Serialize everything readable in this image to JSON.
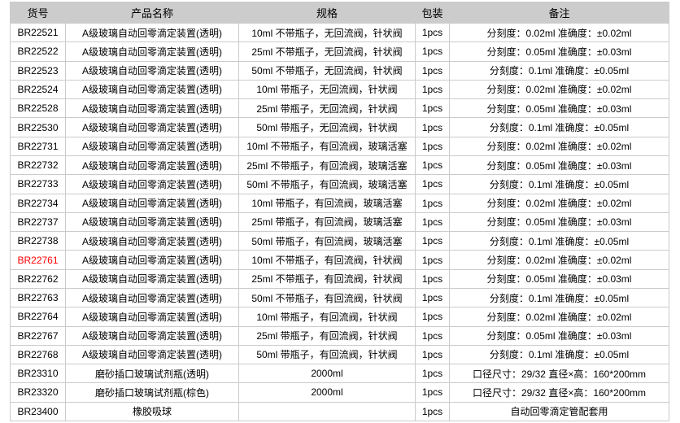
{
  "colors": {
    "header_bg": "#cccccc",
    "border": "#cbcbcb",
    "text": "#000000",
    "highlight_sku": "#ff0000"
  },
  "table": {
    "columns": [
      {
        "key": "sku",
        "label": "货号"
      },
      {
        "key": "name",
        "label": "产品名称"
      },
      {
        "key": "spec",
        "label": "规格"
      },
      {
        "key": "pack",
        "label": "包装"
      },
      {
        "key": "remark",
        "label": "备注"
      }
    ],
    "rows": [
      {
        "sku": "BR22521",
        "name": "A级玻璃自动回零滴定装置(透明)",
        "spec": "10ml 不带瓶子，无回流阀，针状阀",
        "pack": "1pcs",
        "remark": "分刻度：0.02ml 准确度：±0.02ml",
        "highlight": false
      },
      {
        "sku": "BR22522",
        "name": "A级玻璃自动回零滴定装置(透明)",
        "spec": "25ml 不带瓶子，无回流阀，针状阀",
        "pack": "1pcs",
        "remark": "分刻度：0.05ml 准确度：±0.03ml",
        "highlight": false
      },
      {
        "sku": "BR22523",
        "name": "A级玻璃自动回零滴定装置(透明)",
        "spec": "50ml 不带瓶子，无回流阀，针状阀",
        "pack": "1pcs",
        "remark": "分刻度：0.1ml 准确度：±0.05ml",
        "highlight": false
      },
      {
        "sku": "BR22524",
        "name": "A级玻璃自动回零滴定装置(透明)",
        "spec": "10ml 带瓶子，无回流阀，针状阀",
        "pack": "1pcs",
        "remark": "分刻度：0.02ml 准确度：±0.02ml",
        "highlight": false
      },
      {
        "sku": "BR22528",
        "name": "A级玻璃自动回零滴定装置(透明)",
        "spec": "25ml 带瓶子，无回流阀，针状阀",
        "pack": "1pcs",
        "remark": "分刻度：0.05ml 准确度：±0.03ml",
        "highlight": false
      },
      {
        "sku": "BR22530",
        "name": "A级玻璃自动回零滴定装置(透明)",
        "spec": "50ml 带瓶子，无回流阀，针状阀",
        "pack": "1pcs",
        "remark": "分刻度：0.1ml 准确度：±0.05ml",
        "highlight": false
      },
      {
        "sku": "BR22731",
        "name": "A级玻璃自动回零滴定装置(透明)",
        "spec": "10ml 不带瓶子，有回流阀，玻璃活塞",
        "pack": "1pcs",
        "remark": "分刻度：0.02ml 准确度：±0.02ml",
        "highlight": false
      },
      {
        "sku": "BR22732",
        "name": "A级玻璃自动回零滴定装置(透明)",
        "spec": "25ml 不带瓶子，有回流阀，玻璃活塞",
        "pack": "1pcs",
        "remark": "分刻度：0.05ml 准确度：±0.03ml",
        "highlight": false
      },
      {
        "sku": "BR22733",
        "name": "A级玻璃自动回零滴定装置(透明)",
        "spec": "50ml 不带瓶子，有回流阀，玻璃活塞",
        "pack": "1pcs",
        "remark": "分刻度：0.1ml 准确度：±0.05ml",
        "highlight": false
      },
      {
        "sku": "BR22734",
        "name": "A级玻璃自动回零滴定装置(透明)",
        "spec": "10ml 带瓶子，有回流阀，玻璃活塞",
        "pack": "1pcs",
        "remark": "分刻度：0.02ml 准确度：±0.02ml",
        "highlight": false
      },
      {
        "sku": "BR22737",
        "name": "A级玻璃自动回零滴定装置(透明)",
        "spec": "25ml 带瓶子，有回流阀，玻璃活塞",
        "pack": "1pcs",
        "remark": "分刻度：0.05ml 准确度：±0.03ml",
        "highlight": false
      },
      {
        "sku": "BR22738",
        "name": "A级玻璃自动回零滴定装置(透明)",
        "spec": "50ml 带瓶子，有回流阀，玻璃活塞",
        "pack": "1pcs",
        "remark": "分刻度：0.1ml 准确度：±0.05ml",
        "highlight": false
      },
      {
        "sku": "BR22761",
        "name": "A级玻璃自动回零滴定装置(透明)",
        "spec": "10ml 不带瓶子，有回流阀，针状阀",
        "pack": "1pcs",
        "remark": "分刻度：0.02ml 准确度：±0.02ml",
        "highlight": true
      },
      {
        "sku": "BR22762",
        "name": "A级玻璃自动回零滴定装置(透明)",
        "spec": "25ml 不带瓶子，有回流阀，针状阀",
        "pack": "1pcs",
        "remark": "分刻度：0.05ml 准确度：±0.03ml",
        "highlight": false
      },
      {
        "sku": "BR22763",
        "name": "A级玻璃自动回零滴定装置(透明)",
        "spec": "50ml 不带瓶子，有回流阀，针状阀",
        "pack": "1pcs",
        "remark": "分刻度：0.1ml 准确度：±0.05ml",
        "highlight": false
      },
      {
        "sku": "BR22764",
        "name": "A级玻璃自动回零滴定装置(透明)",
        "spec": "10ml 带瓶子，有回流阀，针状阀",
        "pack": "1pcs",
        "remark": "分刻度：0.02ml 准确度：±0.02ml",
        "highlight": false
      },
      {
        "sku": "BR22767",
        "name": "A级玻璃自动回零滴定装置(透明)",
        "spec": "25ml 带瓶子，有回流阀，针状阀",
        "pack": "1pcs",
        "remark": "分刻度：0.05ml 准确度：±0.03ml",
        "highlight": false
      },
      {
        "sku": "BR22768",
        "name": "A级玻璃自动回零滴定装置(透明)",
        "spec": "50ml 带瓶子，有回流阀，针状阀",
        "pack": "1pcs",
        "remark": "分刻度：0.1ml 准确度：±0.05ml",
        "highlight": false
      },
      {
        "sku": "BR23310",
        "name": "磨砂插口玻璃试剂瓶(透明)",
        "spec": "2000ml",
        "pack": "1pcs",
        "remark": "口径尺寸：29/32 直径×高：160*200mm",
        "highlight": false
      },
      {
        "sku": "BR23320",
        "name": "磨砂插口玻璃试剂瓶(棕色)",
        "spec": "2000ml",
        "pack": "1pcs",
        "remark": "口径尺寸：29/32 直径×高：160*200mm",
        "highlight": false
      },
      {
        "sku": "BR23400",
        "name": "橡胶吸球",
        "spec": "",
        "pack": "1pcs",
        "remark": "自动回零滴定管配套用",
        "highlight": false
      }
    ]
  }
}
